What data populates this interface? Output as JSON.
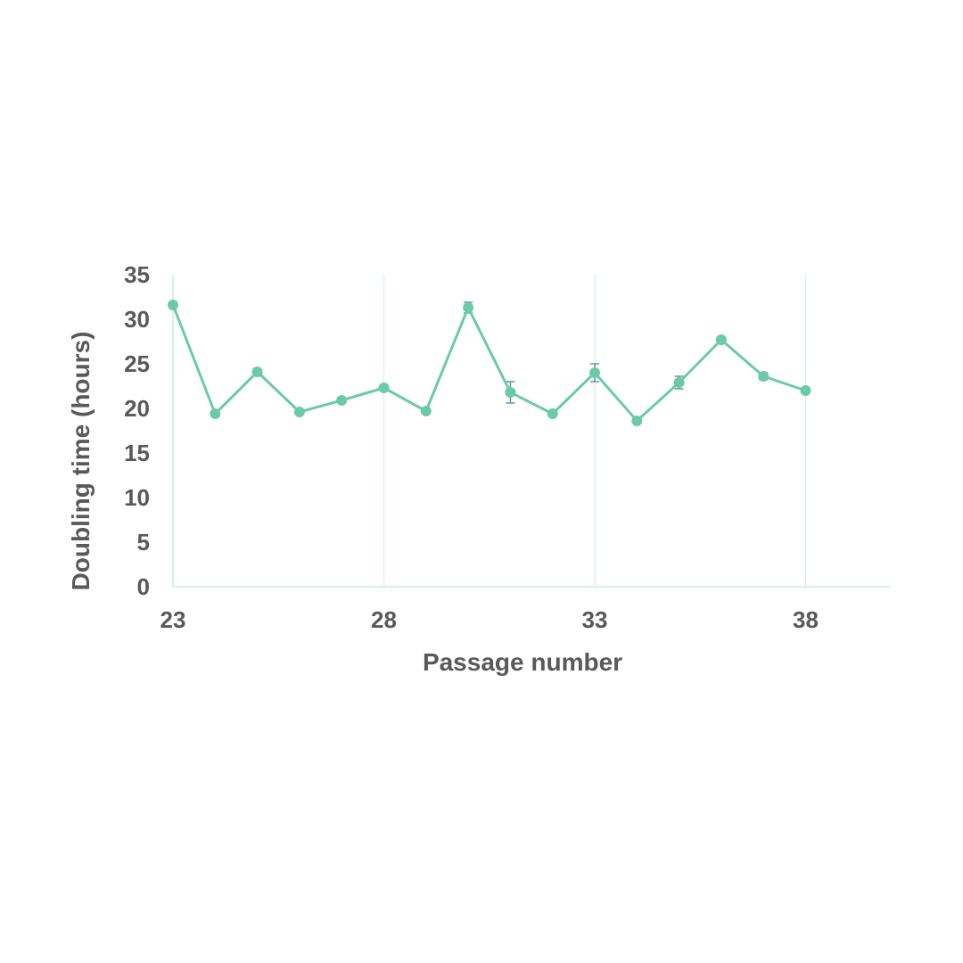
{
  "chart_data": {
    "type": "line",
    "xlabel": "Passage number",
    "ylabel": "Doubling time (hours)",
    "xlim": [
      23,
      40
    ],
    "ylim": [
      0,
      35
    ],
    "x_ticks": [
      23,
      28,
      33,
      38
    ],
    "y_ticks": [
      0,
      5,
      10,
      15,
      20,
      25,
      30,
      35
    ],
    "vertical_grid": true,
    "horizontal_grid": false,
    "legend": "none",
    "series": [
      {
        "color": "#6dcaa8",
        "x": [
          23,
          24,
          25,
          26,
          27,
          28,
          29,
          30,
          31,
          32,
          33,
          34,
          35,
          36,
          37,
          38
        ],
        "y": [
          31.6,
          19.4,
          24.1,
          19.6,
          20.9,
          22.3,
          19.7,
          31.3,
          21.8,
          19.4,
          24.0,
          18.6,
          22.9,
          27.7,
          23.6,
          22.0
        ],
        "error": [
          0,
          0,
          0.3,
          0,
          0,
          0,
          0,
          0.6,
          1.2,
          0,
          1.0,
          0,
          0.7,
          0.3,
          0.4,
          0
        ]
      }
    ]
  }
}
